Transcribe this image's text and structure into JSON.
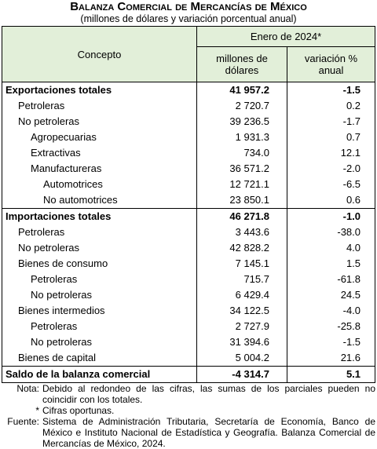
{
  "header": {
    "title": "Balanza Comercial de Mercancías de México",
    "subtitle": "(millones de dólares y variación porcentual anual)"
  },
  "table": {
    "concept_header": "Concepto",
    "period_header": "Enero de 2024*",
    "value_header": "millones de dólares",
    "change_header": "variación % anual",
    "rows": [
      [
        "Exportaciones totales",
        "41 957.2",
        "-1.5"
      ],
      [
        "Petroleras",
        "2 720.7",
        "0.2"
      ],
      [
        "No petroleras",
        "39 236.5",
        "-1.7"
      ],
      [
        "Agropecuarias",
        "1 931.3",
        "0.7"
      ],
      [
        "Extractivas",
        "734.0",
        "12.1"
      ],
      [
        "Manufactureras",
        "36 571.2",
        "-2.0"
      ],
      [
        "Automotrices",
        "12 721.1",
        "-6.5"
      ],
      [
        "No automotrices",
        "23 850.1",
        "0.6"
      ],
      [
        "Importaciones totales",
        "46 271.8",
        "-1.0"
      ],
      [
        "Petroleras",
        "3 443.6",
        "-38.0"
      ],
      [
        "No petroleras",
        "42 828.2",
        "4.0"
      ],
      [
        "Bienes de consumo",
        "7 145.1",
        "1.5"
      ],
      [
        "Petroleras",
        "715.7",
        "-61.8"
      ],
      [
        "No petroleras",
        "6 429.4",
        "24.5"
      ],
      [
        "Bienes intermedios",
        "34 122.5",
        "-4.0"
      ],
      [
        "Petroleras",
        "2 727.9",
        "-25.8"
      ],
      [
        "No petroleras",
        "31 394.6",
        "-1.5"
      ],
      [
        "Bienes de capital",
        "5 004.2",
        "21.6"
      ],
      [
        "Saldo de la balanza comercial",
        "-4 314.7",
        "5.1"
      ]
    ]
  },
  "notes": [
    [
      "Nota:",
      "Debido al redondeo de las cifras, las sumas de los parciales pueden no coincidir con los totales."
    ],
    [
      "*",
      "Cifras oportunas."
    ],
    [
      "Fuente:",
      "Sistema de Administración Tributaria, Secretaría de Economía, Banco de México e Instituto Nacional de Estadística y Geografía. Balanza Comercial de Mercancías de México, 2024."
    ]
  ]
}
